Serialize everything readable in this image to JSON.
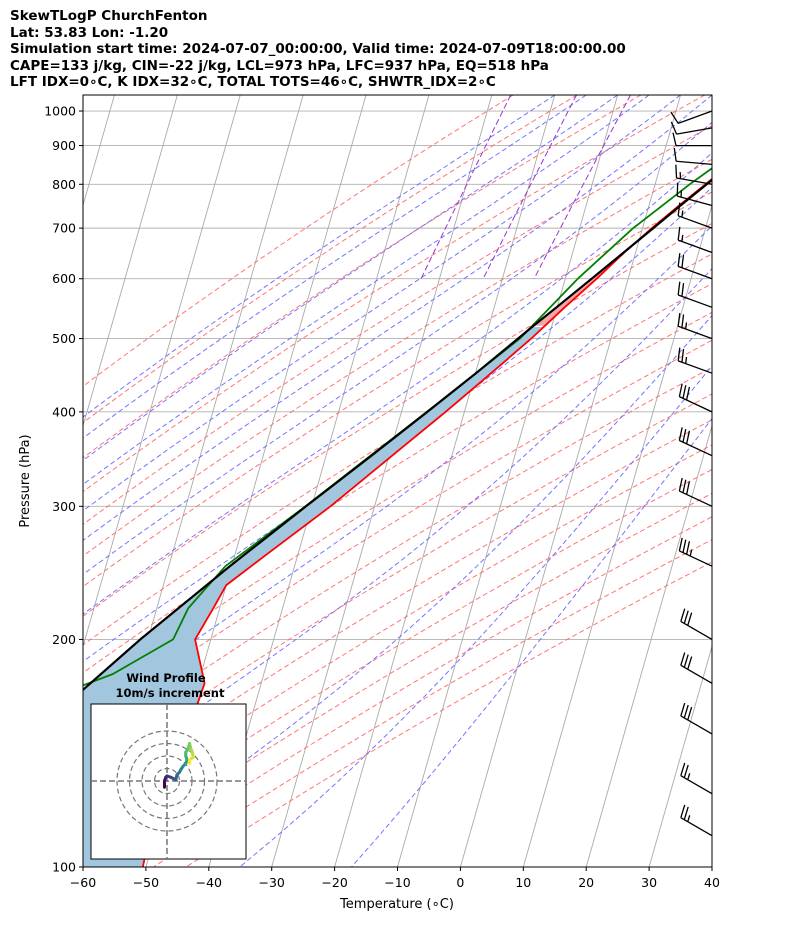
{
  "header": {
    "lines": [
      "SkewTLogP ChurchFenton",
      "Lat: 53.83   Lon: -1.20",
      "Simulation start time: 2024-07-07_00:00:00, Valid time: 2024-07-09T18:00:00.00",
      "CAPE=133 j/kg, CIN=-22 j/kg, LCL=973 hPa, LFC=937 hPa, EQ=518 hPa",
      "LFT IDX=0∘C, K IDX=32∘C, TOTAL TOTS=46∘C, SHWTR_IDX=2∘C"
    ]
  },
  "chart_data": {
    "type": "line",
    "subtype": "skew-t log-p",
    "xlabel": "Temperature (∘C)",
    "ylabel": "Pressure (hPa)",
    "xlim": [
      -60,
      40
    ],
    "ylim": [
      1050,
      100
    ],
    "x_ticks": [
      -60,
      -50,
      -40,
      -30,
      -20,
      -10,
      0,
      10,
      20,
      30,
      40
    ],
    "y_ticks": [
      100,
      200,
      300,
      400,
      500,
      600,
      700,
      800,
      900,
      1000
    ],
    "y_scale": "log",
    "grid": true,
    "colors": {
      "temperature": "#ff0000",
      "dewpoint": "#008000",
      "parcel": "#000000",
      "cape_fill": "#a3c6df",
      "cin_fill": "#f4a6a6",
      "dry_adiabats": "#ff6666",
      "moist_adiabats": "#6666ff",
      "mixing_ratio": "#9933cc",
      "isotherms": "#aaaaaa"
    },
    "series": [
      {
        "role": "temperature",
        "p": [
          1000,
          980,
          950,
          900,
          850,
          800,
          750,
          700,
          650,
          600,
          550,
          500,
          450,
          400,
          350,
          300,
          260,
          236,
          220,
          200,
          175,
          150,
          130,
          115,
          100
        ],
        "T": [
          19.7,
          18.5,
          16.8,
          14.0,
          11.0,
          8.0,
          4.8,
          1.5,
          -1.8,
          -5.0,
          -8.8,
          -12.7,
          -17.5,
          -23.0,
          -29.5,
          -37.0,
          -44.8,
          -50.0,
          -51.0,
          -52.5,
          -49.0,
          -49.5,
          -50.8,
          -51.0,
          -50.5
        ]
      },
      {
        "role": "dewpoint",
        "p": [
          1000,
          980,
          950,
          900,
          850,
          800,
          700,
          600,
          500,
          400,
          300,
          250,
          220,
          200,
          180,
          170,
          140,
          100
        ],
        "T": [
          17.5,
          17.5,
          15.5,
          12.5,
          9.0,
          5.5,
          -1.5,
          -8.0,
          -14.5,
          -26.0,
          -41.0,
          -51.0,
          -55.0,
          -56.0,
          -64.0,
          -71.0,
          -80.0,
          -90.0
        ]
      },
      {
        "role": "parcel",
        "p": [
          1000,
          973,
          950,
          900,
          850,
          800,
          750,
          700,
          650,
          600,
          550,
          518,
          500,
          450,
          400,
          350,
          300,
          250,
          200,
          150,
          100
        ],
        "T": [
          18.5,
          17.4,
          16.3,
          13.8,
          11.1,
          8.2,
          5.0,
          1.7,
          -1.9,
          -5.8,
          -10.1,
          -13.1,
          -14.8,
          -19.9,
          -25.9,
          -32.8,
          -40.9,
          -50.3,
          -61.2,
          -74.0,
          -89.3
        ]
      }
    ],
    "wind_barbs": [
      {
        "p": 1000,
        "dir": 250,
        "speed": 8
      },
      {
        "p": 950,
        "dir": 260,
        "speed": 10
      },
      {
        "p": 900,
        "dir": 270,
        "speed": 12
      },
      {
        "p": 850,
        "dir": 275,
        "speed": 12
      },
      {
        "p": 800,
        "dir": 280,
        "speed": 15
      },
      {
        "p": 750,
        "dir": 285,
        "speed": 15
      },
      {
        "p": 700,
        "dir": 290,
        "speed": 15
      },
      {
        "p": 650,
        "dir": 290,
        "speed": 15
      },
      {
        "p": 600,
        "dir": 290,
        "speed": 20
      },
      {
        "p": 550,
        "dir": 290,
        "speed": 20
      },
      {
        "p": 500,
        "dir": 290,
        "speed": 25
      },
      {
        "p": 450,
        "dir": 290,
        "speed": 25
      },
      {
        "p": 400,
        "dir": 295,
        "speed": 30
      },
      {
        "p": 350,
        "dir": 295,
        "speed": 30
      },
      {
        "p": 300,
        "dir": 295,
        "speed": 30
      },
      {
        "p": 250,
        "dir": 295,
        "speed": 35
      },
      {
        "p": 200,
        "dir": 300,
        "speed": 30
      },
      {
        "p": 175,
        "dir": 300,
        "speed": 30
      },
      {
        "p": 150,
        "dir": 300,
        "speed": 30
      },
      {
        "p": 125,
        "dir": 300,
        "speed": 25
      },
      {
        "p": 110,
        "dir": 300,
        "speed": 25
      }
    ],
    "hodograph": {
      "title": "Wind Profile",
      "subtitle": "10m/s increment",
      "ring_step": 10,
      "rings": 3,
      "points": [
        {
          "u": -2,
          "v": -5
        },
        {
          "u": -2,
          "v": 0
        },
        {
          "u": -1,
          "v": 3
        },
        {
          "u": 0,
          "v": 4
        },
        {
          "u": 3,
          "v": 3
        },
        {
          "u": 5,
          "v": 2
        },
        {
          "u": 7,
          "v": 1
        },
        {
          "u": 8,
          "v": 5
        },
        {
          "u": 10,
          "v": 7
        },
        {
          "u": 11,
          "v": 9
        },
        {
          "u": 13,
          "v": 12
        },
        {
          "u": 15,
          "v": 14
        },
        {
          "u": 16,
          "v": 17
        },
        {
          "u": 15,
          "v": 20
        },
        {
          "u": 15,
          "v": 23
        },
        {
          "u": 17,
          "v": 26
        },
        {
          "u": 18,
          "v": 30
        },
        {
          "u": 19,
          "v": 26
        },
        {
          "u": 20,
          "v": 24
        },
        {
          "u": 21,
          "v": 19
        },
        {
          "u": 18,
          "v": 17
        },
        {
          "u": 18,
          "v": 14
        }
      ]
    }
  }
}
